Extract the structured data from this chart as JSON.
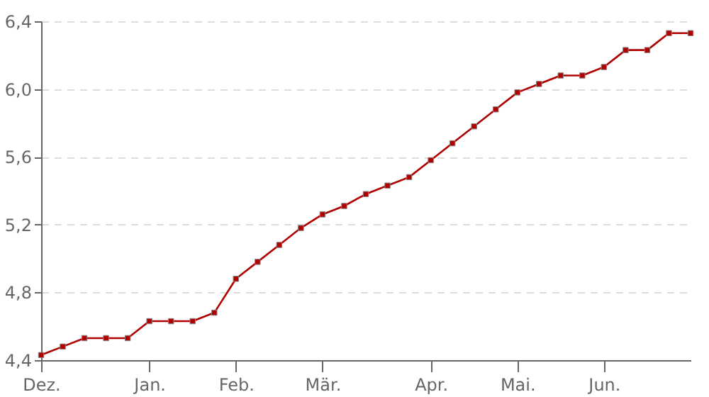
{
  "chart_data": {
    "type": "line",
    "categories": [
      "Dez.",
      null,
      null,
      null,
      null,
      "Jan.",
      null,
      null,
      null,
      "Feb.",
      null,
      null,
      null,
      "Mär.",
      null,
      null,
      null,
      null,
      "Apr.",
      null,
      null,
      null,
      "Mai.",
      null,
      null,
      null,
      "Jun.",
      null,
      null,
      null,
      null
    ],
    "series": [
      {
        "color": "#b00000",
        "values": [
          4.43,
          4.48,
          4.53,
          4.53,
          4.53,
          4.63,
          4.63,
          4.63,
          4.68,
          4.88,
          4.98,
          5.08,
          5.18,
          5.26,
          5.31,
          5.38,
          5.43,
          5.48,
          5.58,
          5.68,
          5.78,
          5.88,
          5.98,
          6.03,
          6.08,
          6.08,
          6.13,
          6.23,
          6.23,
          6.33,
          6.33
        ]
      }
    ],
    "ylim": [
      4.4,
      6.4
    ],
    "yticks": [
      {
        "value": 4.4,
        "label": "4,4"
      },
      {
        "value": 4.8,
        "label": "4,8"
      },
      {
        "value": 5.2,
        "label": "5,2"
      },
      {
        "value": 5.6,
        "label": "5,6"
      },
      {
        "value": 6.0,
        "label": "6,0"
      },
      {
        "value": 6.4,
        "label": "6,4"
      }
    ],
    "grid": "y",
    "marker": "square",
    "line_style": "solid"
  }
}
